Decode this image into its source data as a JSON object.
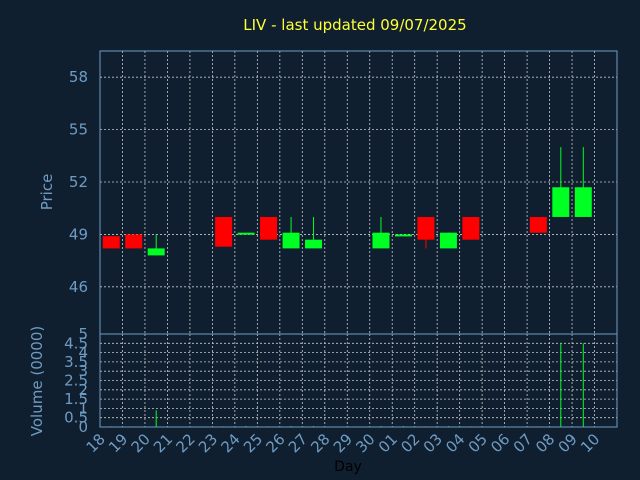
{
  "chart_data": {
    "type": "candlestick",
    "title": "LIV - last updated 09/07/2025",
    "xlabel": "Day",
    "colors": {
      "background": "#0f1f30",
      "axis": "#6f9cc2",
      "title": "#ffff33",
      "up": "#00ff22",
      "down": "#ff0000",
      "grid": "#c8c8c8"
    },
    "x_ticks": [
      "18",
      "19",
      "20",
      "21",
      "22",
      "23",
      "24",
      "25",
      "26",
      "27",
      "28",
      "29",
      "30",
      "01",
      "02",
      "03",
      "04",
      "05",
      "06",
      "07",
      "08",
      "09",
      "10"
    ],
    "price_panel": {
      "ylabel": "Price",
      "ylim": [
        43.3,
        59.5
      ],
      "yticks": [
        46,
        49,
        52,
        55,
        58
      ],
      "grid": true
    },
    "volume_panel": {
      "ylabel": "Volume (0000)",
      "ylim": [
        0,
        5
      ],
      "yticks": [
        "0",
        "0.5",
        "1",
        "1.5",
        "2",
        "2.5",
        "3",
        "3.5",
        "4",
        "4.5",
        "5"
      ],
      "grid": true
    },
    "candles": [
      {
        "day": 0,
        "open": 48.9,
        "close": 48.2,
        "high": 48.9,
        "low": 48.2,
        "volume": 0.05
      },
      {
        "day": 1,
        "open": 49.0,
        "close": 48.2,
        "high": 49.0,
        "low": 48.2,
        "volume": 0.05
      },
      {
        "day": 2,
        "open": 47.8,
        "close": 48.2,
        "high": 49.0,
        "low": 47.8,
        "volume": 0.9
      },
      {
        "day": 5,
        "open": 50.0,
        "close": 48.3,
        "high": 50.0,
        "low": 48.3,
        "volume": 0.05
      },
      {
        "day": 6,
        "open": 49.1,
        "close": 49.1,
        "high": 49.1,
        "low": 49.1,
        "volume": 0.05
      },
      {
        "day": 7,
        "open": 50.0,
        "close": 48.7,
        "high": 50.0,
        "low": 48.7,
        "volume": 0.05
      },
      {
        "day": 8,
        "open": 48.2,
        "close": 49.1,
        "high": 50.0,
        "low": 48.2,
        "volume": 0.05
      },
      {
        "day": 9,
        "open": 48.2,
        "close": 48.7,
        "high": 50.0,
        "low": 48.2,
        "volume": 0.05
      },
      {
        "day": 12,
        "open": 48.2,
        "close": 49.1,
        "high": 50.0,
        "low": 48.2,
        "volume": 0.05
      },
      {
        "day": 13,
        "open": 49.0,
        "close": 49.0,
        "high": 49.0,
        "low": 49.0,
        "volume": 0.05
      },
      {
        "day": 14,
        "open": 50.0,
        "close": 48.7,
        "high": 50.0,
        "low": 48.2,
        "volume": 0.05
      },
      {
        "day": 15,
        "open": 48.2,
        "close": 49.1,
        "high": 49.1,
        "low": 48.2,
        "volume": 0.05
      },
      {
        "day": 16,
        "open": 50.0,
        "close": 48.7,
        "high": 50.0,
        "low": 48.7,
        "volume": 0.05
      },
      {
        "day": 19,
        "open": 50.0,
        "close": 49.1,
        "high": 50.0,
        "low": 49.1,
        "volume": 0.05
      },
      {
        "day": 20,
        "open": 50.0,
        "close": 51.7,
        "high": 54.0,
        "low": 50.0,
        "volume": 4.5
      },
      {
        "day": 21,
        "open": 50.0,
        "close": 51.7,
        "high": 54.0,
        "low": 50.0,
        "volume": 4.5
      }
    ]
  }
}
